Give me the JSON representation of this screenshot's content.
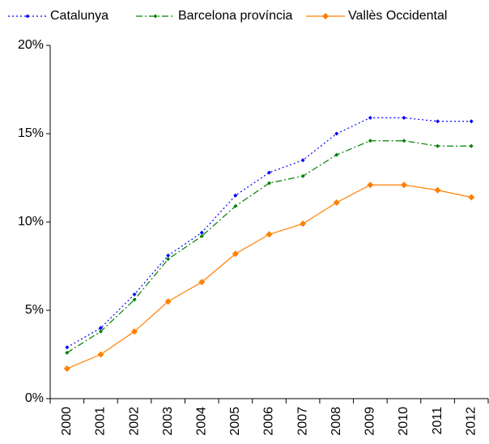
{
  "chart_data": {
    "type": "line",
    "categories": [
      "2000",
      "2001",
      "2002",
      "2003",
      "2004",
      "2005",
      "2006",
      "2007",
      "2008",
      "2009",
      "2010",
      "2011",
      "2012"
    ],
    "series": [
      {
        "name": "Catalunya",
        "color": "#0000ff",
        "line_style": "dotted",
        "values": [
          2.9,
          4.0,
          5.9,
          8.1,
          9.4,
          11.5,
          12.8,
          13.5,
          15.0,
          15.9,
          15.9,
          15.7,
          15.7
        ]
      },
      {
        "name": "Barcelona província",
        "color": "#008000",
        "line_style": "dash-dot",
        "values": [
          2.6,
          3.8,
          5.6,
          7.9,
          9.2,
          10.9,
          12.2,
          12.6,
          13.8,
          14.6,
          14.6,
          14.3,
          14.3
        ]
      },
      {
        "name": "Vallès Occidental",
        "color": "#ff8000",
        "line_style": "solid",
        "values": [
          1.7,
          2.5,
          3.8,
          5.5,
          6.6,
          8.2,
          9.3,
          9.9,
          11.1,
          12.1,
          12.1,
          11.8,
          11.4
        ]
      }
    ],
    "ylim": [
      0,
      20
    ],
    "yticks": [
      {
        "value": 0,
        "label": "0%"
      },
      {
        "value": 5,
        "label": "5%"
      },
      {
        "value": 10,
        "label": "10%"
      },
      {
        "value": 15,
        "label": "15%"
      },
      {
        "value": 20,
        "label": "20%"
      }
    ],
    "grid": false,
    "legend": "top"
  }
}
